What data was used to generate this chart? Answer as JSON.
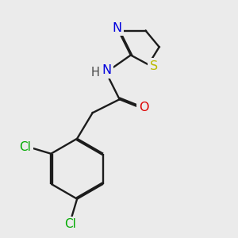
{
  "bg": "#ebebeb",
  "bond_color": "#1c1c1c",
  "bond_lw": 1.7,
  "atom_colors": {
    "N": "#0000dd",
    "O": "#dd0000",
    "S": "#bbbb00",
    "Cl": "#00aa00",
    "H": "#444444",
    "C": "#1c1c1c"
  },
  "fs": 10.5,
  "dbo": 0.055
}
